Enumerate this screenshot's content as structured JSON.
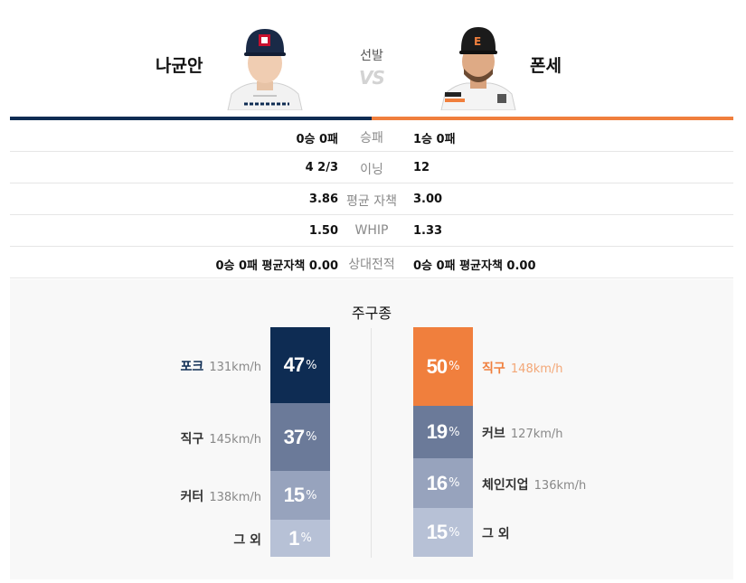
{
  "header": {
    "away_name": "나균안",
    "home_name": "폰세",
    "starter_label": "선발",
    "vs_label": "VS"
  },
  "colors": {
    "away_primary": "#0e2c53",
    "home_primary": "#f07f3d"
  },
  "stats": [
    {
      "away": "0승 0패",
      "label": "승패",
      "home": "1승 0패"
    },
    {
      "away": "4 2/3",
      "label": "이닝",
      "home": "12"
    },
    {
      "away": "3.86",
      "label": "평균 자책",
      "home": "3.00"
    },
    {
      "away": "1.50",
      "label": "WHIP",
      "home": "1.33"
    },
    {
      "away": "0승 0패 평균자책 0.00",
      "label": "상대전적",
      "home": "0승 0패 평균자책 0.00"
    }
  ],
  "pitch_mix": {
    "title": "주구종",
    "away": [
      {
        "name": "포크",
        "speed": "131km/h",
        "percent": 47,
        "color": "#0e2c53",
        "name_color": "#0e2c53"
      },
      {
        "name": "직구",
        "speed": "145km/h",
        "percent": 37,
        "color": "#6b7a99",
        "name_color": "#333333"
      },
      {
        "name": "커터",
        "speed": "138km/h",
        "percent": 15,
        "color": "#97a3bd",
        "name_color": "#333333"
      },
      {
        "name": "그 외",
        "speed": "",
        "percent": 1,
        "color": "#b7c1d6",
        "name_color": "#333333"
      }
    ],
    "home": [
      {
        "name": "직구",
        "speed": "148km/h",
        "percent": 50,
        "color": "#f07f3d",
        "name_color": "#f07f3d"
      },
      {
        "name": "커브",
        "speed": "127km/h",
        "percent": 19,
        "color": "#6b7a99",
        "name_color": "#333333"
      },
      {
        "name": "체인지업",
        "speed": "136km/h",
        "percent": 16,
        "color": "#97a3bd",
        "name_color": "#333333"
      },
      {
        "name": "그 외",
        "speed": "",
        "percent": 15,
        "color": "#b7c1d6",
        "name_color": "#333333"
      }
    ],
    "percent_symbol": "%"
  }
}
